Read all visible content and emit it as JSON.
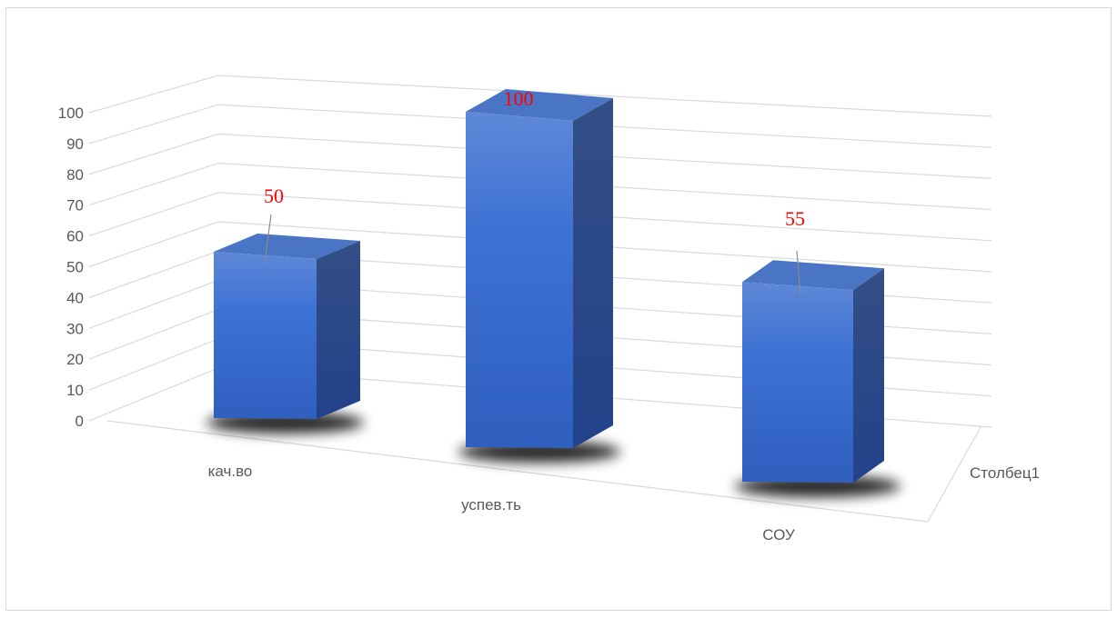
{
  "chart_data": {
    "type": "bar",
    "style": "3d-column",
    "categories": [
      "кач.во",
      "успев.ть",
      "СОУ"
    ],
    "series": [
      {
        "name": "Столбец1",
        "values": [
          50,
          100,
          55
        ]
      }
    ],
    "data_labels": [
      "50",
      "100",
      "55"
    ],
    "y_ticks": [
      "0",
      "10",
      "20",
      "30",
      "40",
      "50",
      "60",
      "70",
      "80",
      "90",
      "100"
    ],
    "ylim": [
      0,
      100
    ],
    "grid": true,
    "legend": "none",
    "colors": {
      "bar_front": "#3a6fd0",
      "bar_side": "#27498f",
      "bar_top": "#4a74c4",
      "data_label": "#ff0000",
      "gridline": "#d9d9d9",
      "text": "#595959"
    }
  }
}
